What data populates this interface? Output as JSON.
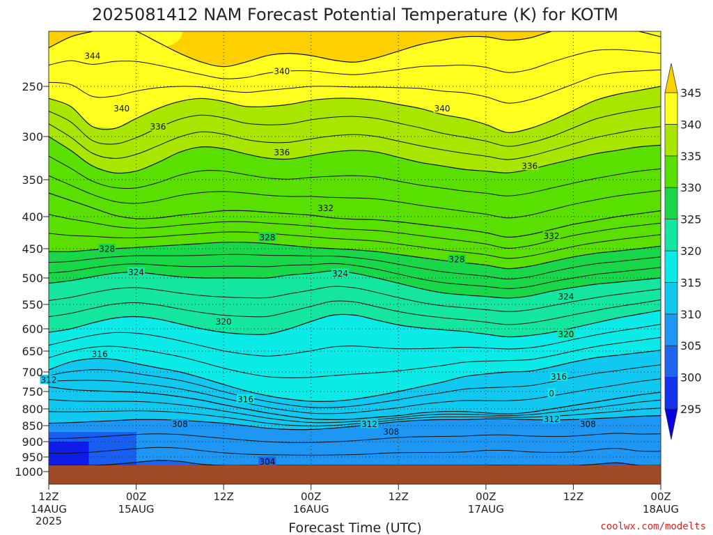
{
  "chart_data": {
    "type": "contour",
    "title": "2025081412 NAM Forecast Potential Temperature (K) for KOTM",
    "xlabel": "Forecast Time (UTC)",
    "ylabel": "",
    "credit": "coolwx.com/modelts",
    "y_axis": {
      "scale": "pressure (hPa), reversed",
      "ticks": [
        250,
        300,
        350,
        400,
        450,
        500,
        550,
        600,
        650,
        700,
        750,
        800,
        850,
        900,
        950,
        1000
      ]
    },
    "x_axis": {
      "range": [
        "2025-08-14T12:00Z",
        "2025-08-18T00:00Z"
      ],
      "ticks": [
        {
          "hour": 0,
          "time": "12Z",
          "date": "14AUG",
          "year": "2025"
        },
        {
          "hour": 12,
          "time": "00Z",
          "date": "15AUG",
          "year": ""
        },
        {
          "hour": 24,
          "time": "12Z",
          "date": "",
          "year": ""
        },
        {
          "hour": 36,
          "time": "00Z",
          "date": "16AUG",
          "year": ""
        },
        {
          "hour": 48,
          "time": "12Z",
          "date": "",
          "year": ""
        },
        {
          "hour": 60,
          "time": "00Z",
          "date": "17AUG",
          "year": ""
        },
        {
          "hour": 72,
          "time": "12Z",
          "date": "",
          "year": ""
        },
        {
          "hour": 84,
          "time": "00Z",
          "date": "18AUG",
          "year": ""
        }
      ]
    },
    "colorbar": {
      "unit": "K",
      "levels": [
        295,
        300,
        305,
        310,
        315,
        320,
        325,
        330,
        335,
        340,
        345
      ],
      "colors": [
        "#0a00e0",
        "#1432ee",
        "#1e64f0",
        "#1e96f4",
        "#10c8f0",
        "#0aeae6",
        "#14e6a0",
        "#18d84a",
        "#5ae000",
        "#a8e600",
        "#ffff20",
        "#ffd000"
      ]
    },
    "contour_interval": 4,
    "contour_lines": [
      {
        "theta": 304,
        "pressure": [
          985,
          986,
          982,
          975,
          968,
          962,
          965,
          975,
          983,
          986,
          985,
          984,
          985,
          986,
          987,
          986,
          985,
          986,
          987,
          984,
          978,
          978,
          984,
          986,
          984,
          975,
          970,
          985,
          987
        ]
      },
      {
        "theta": 308,
        "pressure": [
          843,
          841,
          838,
          835,
          832,
          832,
          834,
          838,
          843,
          850,
          858,
          862,
          862,
          858,
          852,
          845,
          838,
          834,
          832,
          832,
          830,
          830,
          832,
          833,
          832,
          829,
          826,
          822,
          820
        ]
      },
      {
        "theta": 312,
        "pressure": [
          738,
          745,
          748,
          750,
          752,
          757,
          765,
          775,
          788,
          800,
          812,
          822,
          830,
          832,
          830,
          825,
          820,
          812,
          808,
          808,
          812,
          815,
          810,
          800,
          790,
          780,
          770,
          760,
          752
        ]
      },
      {
        "theta": 316,
        "pressure": [
          695,
          676,
          668,
          670,
          680,
          690,
          700,
          715,
          732,
          748,
          762,
          772,
          778,
          778,
          772,
          762,
          750,
          738,
          726,
          712,
          705,
          700,
          698,
          688,
          676,
          666,
          660,
          654,
          648
        ]
      },
      {
        "theta": 320,
        "pressure": [
          608,
          600,
          588,
          578,
          575,
          580,
          590,
          600,
          608,
          612,
          612,
          600,
          585,
          572,
          572,
          582,
          592,
          598,
          602,
          606,
          612,
          618,
          615,
          608,
          598,
          588,
          578,
          570,
          562
        ]
      },
      {
        "theta": 324,
        "pressure": [
          510,
          505,
          498,
          492,
          490,
          494,
          498,
          500,
          500,
          500,
          500,
          495,
          492,
          488,
          492,
          500,
          510,
          520,
          528,
          532,
          535,
          538,
          534,
          525,
          518,
          512,
          508,
          504,
          500
        ]
      },
      {
        "theta": 328,
        "pressure": [
          455,
          455,
          452,
          450,
          448,
          446,
          444,
          442,
          440,
          440,
          442,
          445,
          448,
          450,
          452,
          455,
          460,
          465,
          470,
          474,
          478,
          484,
          480,
          472,
          464,
          458,
          454,
          450,
          446
        ]
      },
      {
        "theta": 332,
        "pressure": [
          368,
          378,
          388,
          398,
          403,
          402,
          398,
          395,
          392,
          392,
          394,
          396,
          398,
          402,
          404,
          405,
          408,
          412,
          416,
          420,
          425,
          432,
          428,
          420,
          412,
          406,
          400,
          396,
          392
        ]
      },
      {
        "theta": 336,
        "pressure": [
          300,
          316,
          334,
          342,
          340,
          330,
          318,
          312,
          314,
          320,
          325,
          326,
          322,
          318,
          316,
          318,
          324,
          330,
          334,
          338,
          340,
          342,
          338,
          332,
          326,
          320,
          316,
          312,
          310
        ]
      },
      {
        "theta": 340,
        "pressure": [
          262,
          270,
          290,
          292,
          282,
          272,
          265,
          262,
          265,
          270,
          270,
          268,
          264,
          262,
          262,
          264,
          268,
          272,
          278,
          282,
          288,
          296,
          292,
          284,
          274,
          264,
          258,
          254,
          250
        ]
      },
      {
        "theta": 344,
        "pressure": [
          215,
          205,
          200,
          195,
          200,
          210,
          220,
          228,
          232,
          228,
          222,
          220,
          222,
          226,
          228,
          224,
          218,
          212,
          208,
          205,
          205,
          208,
          206,
          200,
          196,
          194,
          196,
          200,
          205
        ]
      }
    ],
    "contour_labels": [
      {
        "text": "344",
        "hour": 6,
        "pressure": 222
      },
      {
        "text": "340",
        "hour": 32,
        "pressure": 236
      },
      {
        "text": "340",
        "hour": 10,
        "pressure": 272
      },
      {
        "text": "340",
        "hour": 54,
        "pressure": 272
      },
      {
        "text": "336",
        "hour": 15,
        "pressure": 290
      },
      {
        "text": "336",
        "hour": 32,
        "pressure": 318
      },
      {
        "text": "336",
        "hour": 66,
        "pressure": 334
      },
      {
        "text": "332",
        "hour": 38,
        "pressure": 388
      },
      {
        "text": "332",
        "hour": 69,
        "pressure": 430
      },
      {
        "text": "328",
        "hour": 8,
        "pressure": 450
      },
      {
        "text": "328",
        "hour": 30,
        "pressure": 432
      },
      {
        "text": "328",
        "hour": 56,
        "pressure": 468
      },
      {
        "text": "324",
        "hour": 12,
        "pressure": 490
      },
      {
        "text": "324",
        "hour": 40,
        "pressure": 492
      },
      {
        "text": "324",
        "hour": 71,
        "pressure": 535
      },
      {
        "text": "320",
        "hour": 24,
        "pressure": 585
      },
      {
        "text": "320",
        "hour": 71,
        "pressure": 612
      },
      {
        "text": "316",
        "hour": 7,
        "pressure": 657
      },
      {
        "text": "316",
        "hour": 27,
        "pressure": 772
      },
      {
        "text": "316",
        "hour": 70,
        "pressure": 712
      },
      {
        "text": "312",
        "hour": 0,
        "pressure": 720
      },
      {
        "text": "312",
        "hour": 44,
        "pressure": 845
      },
      {
        "text": "312",
        "hour": 69,
        "pressure": 830
      },
      {
        "text": "308",
        "hour": 18,
        "pressure": 845
      },
      {
        "text": "308",
        "hour": 47,
        "pressure": 868
      },
      {
        "text": "308",
        "hour": 74,
        "pressure": 845
      },
      {
        "text": "304",
        "hour": 30,
        "pressure": 965
      },
      {
        "text": "0",
        "hour": 69,
        "pressure": 755
      }
    ]
  }
}
